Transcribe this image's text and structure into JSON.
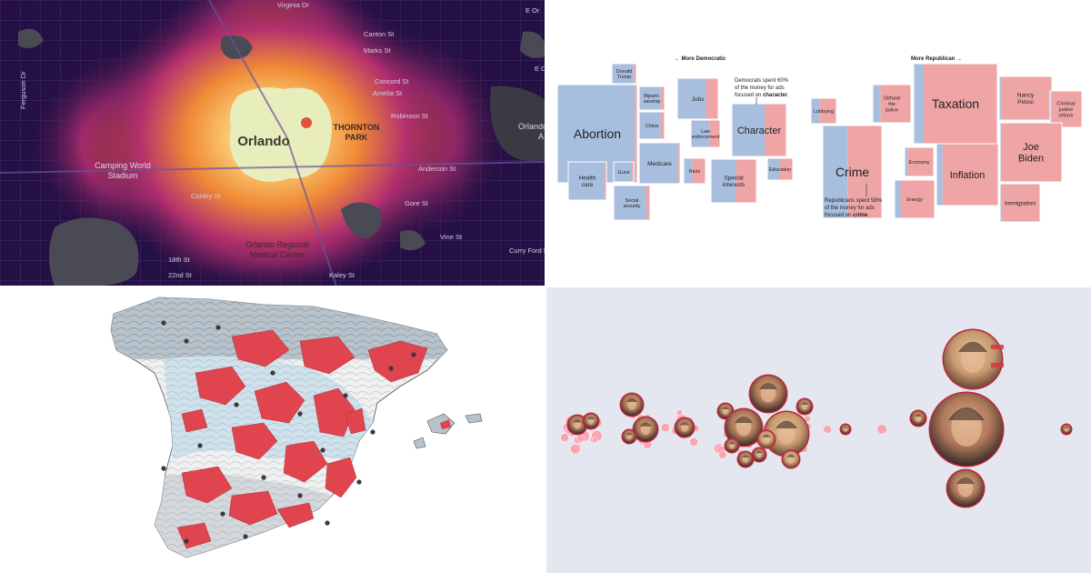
{
  "heatmap": {
    "city_label": "Orlando",
    "district_label_1": "THORNTON",
    "district_label_2": "PARK",
    "stadium_label_1": "Camping World",
    "stadium_label_2": "Stadium",
    "medical_label_1": "Orlando Regional",
    "medical_label_2": "Medical Center",
    "edge_label_1": "Orlando",
    "edge_label_2": "A",
    "streets": [
      "Virginia Dr",
      "E Or",
      "Canton St",
      "Marks St",
      "E Colonial",
      "Concord St",
      "Amelia St",
      "Robinson St",
      "Anderson St",
      "Gore St",
      "Vine St",
      "Curry Ford Rd",
      "Kaley St",
      "18th St",
      "22nd St",
      "Conley St",
      "Ferguson Dr"
    ]
  },
  "treemap": {
    "header_left": "← More Democratic",
    "header_right": "More Republican →",
    "annotation_dem": [
      "Democrats spent 60%",
      "of the money for ads",
      "focused on"
    ],
    "annotation_dem_bold": "character",
    "annotation_rep": [
      "Republicans spent 58%",
      "of the money for ads",
      "focused on"
    ],
    "annotation_rep_bold": "crime",
    "colors": {
      "democratic": "#a8bedf",
      "republican": "#efa5a5",
      "text": "#222222"
    },
    "tiles": [
      {
        "label": [
          "Abortion"
        ],
        "dem_share": 0.97,
        "size": "xl"
      },
      {
        "label": [
          "Donald",
          "Trump"
        ],
        "dem_share": 0.9,
        "size": "s"
      },
      {
        "label": [
          "Biparti-",
          "sanship"
        ],
        "dem_share": 0.85,
        "size": "s"
      },
      {
        "label": [
          "China"
        ],
        "dem_share": 0.85,
        "size": "s"
      },
      {
        "label": [
          "Medicare"
        ],
        "dem_share": 0.95,
        "size": "m"
      },
      {
        "label": [
          "Health",
          "care"
        ],
        "dem_share": 0.95,
        "size": "m"
      },
      {
        "label": [
          "Guns"
        ],
        "dem_share": 0.9,
        "size": "s"
      },
      {
        "label": [
          "Social",
          "security"
        ],
        "dem_share": 0.9,
        "size": "s"
      },
      {
        "label": [
          "Jobs"
        ],
        "dem_share": 0.7,
        "size": "m"
      },
      {
        "label": [
          "Law",
          "enforcement"
        ],
        "dem_share": 0.65,
        "size": "s"
      },
      {
        "label": [
          "Character"
        ],
        "dem_share": 0.6,
        "size": "l"
      },
      {
        "label": [
          "Riots"
        ],
        "dem_share": 0.4,
        "size": "s"
      },
      {
        "label": [
          "Special",
          "interests"
        ],
        "dem_share": 0.55,
        "size": "m"
      },
      {
        "label": [
          "Education"
        ],
        "dem_share": 0.5,
        "size": "s"
      },
      {
        "label": [
          "Lobbying"
        ],
        "dem_share": 0.35,
        "size": "s"
      },
      {
        "label": [
          "Defund",
          "the",
          "police"
        ],
        "dem_share": 0.2,
        "size": "s"
      },
      {
        "label": [
          "Crime"
        ],
        "dem_share": 0.42,
        "size": "xl"
      },
      {
        "label": [
          "Taxation"
        ],
        "dem_share": 0.12,
        "size": "xl"
      },
      {
        "label": [
          "Economy"
        ],
        "dem_share": 0.1,
        "size": "s"
      },
      {
        "label": [
          "Energy"
        ],
        "dem_share": 0.15,
        "size": "s"
      },
      {
        "label": [
          "Inflation"
        ],
        "dem_share": 0.1,
        "size": "l"
      },
      {
        "label": [
          "Nancy",
          "Pelosi"
        ],
        "dem_share": 0.05,
        "size": "m"
      },
      {
        "label": [
          "Criminal",
          "justice",
          "reform"
        ],
        "dem_share": 0.05,
        "size": "s"
      },
      {
        "label": [
          "Joe",
          "Biden"
        ],
        "dem_share": 0.03,
        "size": "l"
      },
      {
        "label": [
          "Immigration"
        ],
        "dem_share": 0.05,
        "size": "m"
      }
    ]
  },
  "spain_map": {
    "colors": {
      "land": "#ffffff",
      "sea": "#ffffff",
      "lightblue": "#cfe2ec",
      "grey": "#b8bec4",
      "red": "#e0454f",
      "dark": "#3a3a3a"
    }
  },
  "bubble_chart": {
    "colors": {
      "background": "#e4e7ef",
      "bubble": "#f6a7b3",
      "ring": "#c0263a"
    }
  }
}
